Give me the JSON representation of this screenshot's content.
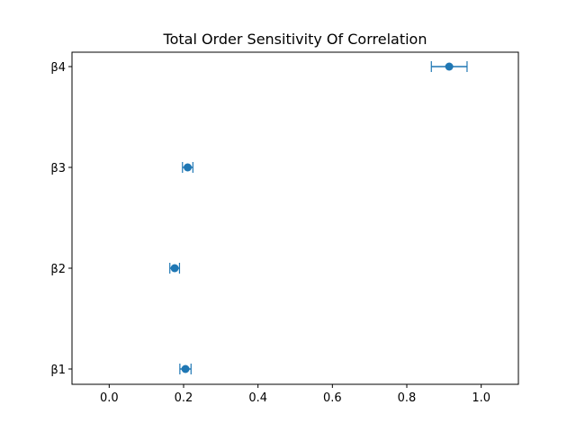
{
  "chart_data": {
    "type": "scatter",
    "title": "Total Order Sensitivity Of Correlation",
    "xlabel": "",
    "ylabel": "",
    "xlim": [
      -0.1,
      1.1
    ],
    "xticks": [
      "0.0",
      "0.2",
      "0.4",
      "0.6",
      "0.8",
      "1.0"
    ],
    "xtick_values": [
      0.0,
      0.2,
      0.4,
      0.6,
      0.8,
      1.0
    ],
    "categories": [
      "β1",
      "β2",
      "β3",
      "β4"
    ],
    "series": [
      {
        "values": [
          0.205,
          0.176,
          0.211,
          0.914
        ],
        "error": [
          0.015,
          0.013,
          0.014,
          0.048
        ],
        "color": "#1f77b4"
      }
    ],
    "grid": false,
    "legend": "none"
  }
}
